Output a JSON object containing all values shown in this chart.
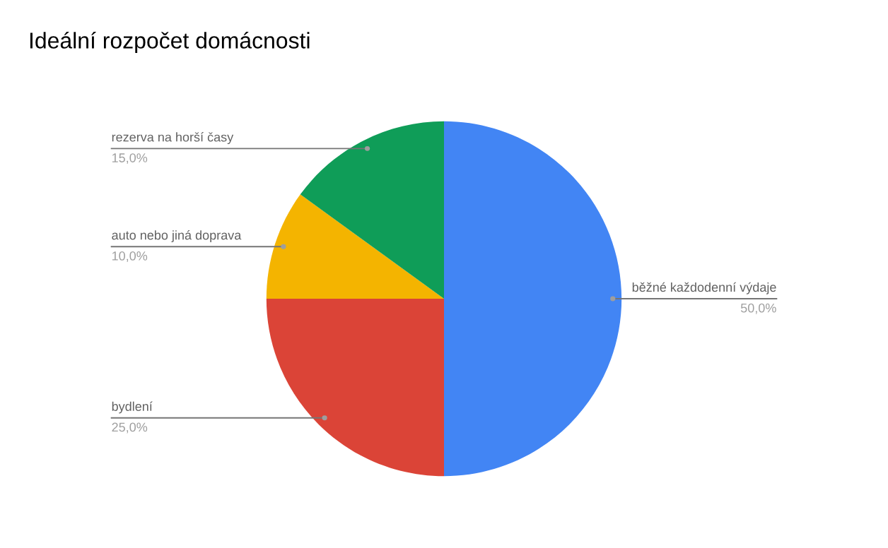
{
  "chart_data": {
    "type": "pie",
    "title": "Ideální rozpočet domácnosti",
    "categories": [
      "běžné každodenní výdaje",
      "bydlení",
      "auto nebo jiná doprava",
      "rezerva na horší časy"
    ],
    "values": [
      50,
      25,
      10,
      15
    ],
    "colors": [
      "#4285f4",
      "#db4437",
      "#f4b400",
      "#0f9d58"
    ],
    "value_labels": [
      "50,0%",
      "25,0%",
      "10,0%",
      "15,0%"
    ],
    "legend": false
  }
}
